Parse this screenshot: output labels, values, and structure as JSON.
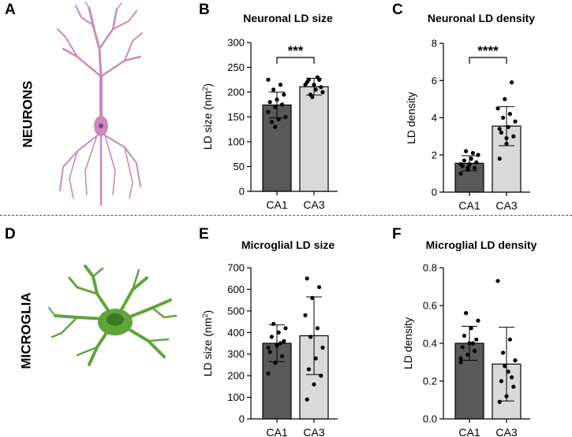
{
  "panel_letters": [
    "A",
    "B",
    "C",
    "D",
    "E",
    "F"
  ],
  "row_labels": {
    "top": "NEURONS",
    "bottom": "MICROGLIA"
  },
  "colors": {
    "ca1": "#595959",
    "ca3": "#d9d9d9",
    "neuron": "#c98abd",
    "microglia": "#5fa53a"
  },
  "chart_data": [
    {
      "panel": "B",
      "type": "bar",
      "title": "Neuronal LD size",
      "ylabel": "LD size (nm",
      "ylabel_sup": "2",
      "ylabel_suffix": ")",
      "categories": [
        "CA1",
        "CA3"
      ],
      "values": [
        174,
        211
      ],
      "sd": [
        26,
        17
      ],
      "ylim": [
        0,
        300
      ],
      "ticks": [
        0,
        50,
        100,
        150,
        200,
        250,
        300
      ],
      "significance": "***",
      "points": [
        [
          160,
          170,
          175,
          180,
          185,
          195,
          140,
          145,
          150,
          205,
          215,
          225,
          130
        ],
        [
          220,
          215,
          210,
          225,
          205,
          200,
          195,
          230,
          215,
          190,
          225
        ]
      ]
    },
    {
      "panel": "C",
      "type": "bar",
      "title": "Neuronal LD density",
      "ylabel": "LD density",
      "ylabel_sup": "",
      "ylabel_suffix": "",
      "categories": [
        "CA1",
        "CA3"
      ],
      "values": [
        1.55,
        3.55
      ],
      "sd": [
        0.4,
        1.05
      ],
      "ylim": [
        0,
        8
      ],
      "ticks": [
        0,
        2,
        4,
        6,
        8
      ],
      "significance": "****",
      "points": [
        [
          1.0,
          1.2,
          1.3,
          1.4,
          1.5,
          1.6,
          1.7,
          1.8,
          2.0,
          2.2,
          2.1,
          1.5,
          1.3
        ],
        [
          1.8,
          2.6,
          3.0,
          3.2,
          3.5,
          3.8,
          4.0,
          4.2,
          4.5,
          5.0,
          5.9,
          3.4,
          2.9
        ]
      ]
    },
    {
      "panel": "E",
      "type": "bar",
      "title": "Microglial LD size",
      "ylabel": "LD size (nm",
      "ylabel_sup": "2",
      "ylabel_suffix": ")",
      "categories": [
        "CA1",
        "CA3"
      ],
      "values": [
        350,
        385
      ],
      "sd": [
        85,
        180
      ],
      "ylim": [
        0,
        700
      ],
      "ticks": [
        0,
        100,
        200,
        300,
        400,
        500,
        600,
        700
      ],
      "significance": "",
      "points": [
        [
          210,
          260,
          290,
          310,
          340,
          360,
          380,
          400,
          420,
          440,
          350,
          330
        ],
        [
          90,
          160,
          200,
          230,
          280,
          330,
          380,
          420,
          480,
          560,
          610,
          650
        ]
      ]
    },
    {
      "panel": "F",
      "type": "bar",
      "title": "Microglial LD density",
      "ylabel": "LD density",
      "ylabel_sup": "",
      "ylabel_suffix": "",
      "categories": [
        "CA1",
        "CA3"
      ],
      "values": [
        0.4,
        0.29
      ],
      "sd": [
        0.09,
        0.195
      ],
      "ylim": [
        0,
        0.8
      ],
      "ticks": [
        "0.0",
        "0.2",
        "0.4",
        "0.6",
        "0.8"
      ],
      "significance": "",
      "points": [
        [
          0.32,
          0.34,
          0.36,
          0.38,
          0.4,
          0.42,
          0.44,
          0.48,
          0.52,
          0.56,
          0.4,
          0.3
        ],
        [
          0.09,
          0.12,
          0.17,
          0.2,
          0.25,
          0.31,
          0.35,
          0.42,
          0.73,
          0.28,
          0.22
        ]
      ]
    }
  ]
}
